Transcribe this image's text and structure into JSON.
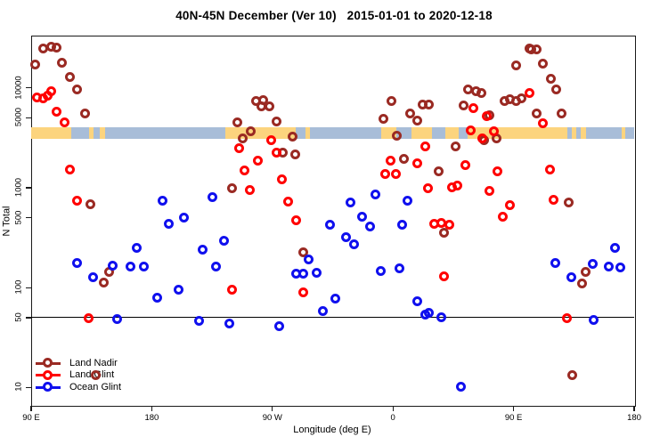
{
  "title": "40N-45N December (Ver 10)   2015-01-01 to 2020-12-18",
  "chart_data": {
    "type": "scatter",
    "title": "40N-45N December (Ver 10)   2015-01-01 to 2020-12-18",
    "xlabel": "Longitude (deg E)",
    "ylabel": "N Total",
    "x_axis": {
      "range": [
        90,
        540
      ],
      "note": "longitude axis wraps: 90E eastward around globe 1.25 turns",
      "ticks": [
        {
          "value": 90,
          "label": "90 E"
        },
        {
          "value": 180,
          "label": "180"
        },
        {
          "value": 270,
          "label": "90 W"
        },
        {
          "value": 360,
          "label": "0"
        },
        {
          "value": 450,
          "label": "90 E"
        },
        {
          "value": 540,
          "label": "180"
        }
      ]
    },
    "y_axis": {
      "scale": "log",
      "range": [
        6.6,
        33000
      ],
      "ticks": [
        {
          "value": 10000,
          "label": "10000"
        },
        {
          "value": 5000,
          "label": "5000"
        },
        {
          "value": 1000,
          "label": "1000"
        },
        {
          "value": 500,
          "label": "500"
        },
        {
          "value": 100,
          "label": "100"
        },
        {
          "value": 50,
          "label": "50"
        },
        {
          "value": 10,
          "label": "10"
        }
      ]
    },
    "reference_line": {
      "y": 50,
      "color": "#000000"
    },
    "map_band": {
      "y_top": 3980,
      "y_bottom": 3070,
      "ocean_color": "#a8bdd8",
      "land_color": "#fcd47e",
      "land_segments": [
        [
          90,
          119.9
        ],
        [
          133.2,
          136.5
        ],
        [
          141.2,
          145.2
        ],
        [
          234.9,
          287.4
        ],
        [
          294.7,
          298.1
        ],
        [
          351.4,
          362.6
        ],
        [
          373.7,
          389.2
        ],
        [
          399.1,
          409.1
        ],
        [
          415.7,
          490.1
        ],
        [
          493.5,
          497.0
        ],
        [
          500.0,
          504.4
        ],
        [
          530.5,
          533.5
        ]
      ]
    },
    "legend": {
      "position": "bottom-left"
    },
    "series": [
      {
        "name": "Land Nadir",
        "color": "#9a2a23",
        "points": [
          [
            99,
            24700
          ],
          [
            105,
            25700
          ],
          [
            109,
            25200
          ],
          [
            93,
            17100
          ],
          [
            113,
            17800
          ],
          [
            119,
            12800
          ],
          [
            124,
            9600
          ],
          [
            130,
            5480
          ],
          [
            134.5,
            680
          ],
          [
            148,
            141
          ],
          [
            144,
            110
          ],
          [
            138,
            13
          ],
          [
            258,
            7360
          ],
          [
            263,
            7500
          ],
          [
            262,
            6500
          ],
          [
            268,
            6520
          ],
          [
            273,
            4600
          ],
          [
            244,
            4500
          ],
          [
            254,
            3670
          ],
          [
            248,
            3110
          ],
          [
            285,
            3240
          ],
          [
            278,
            2200
          ],
          [
            287,
            2110
          ],
          [
            240,
            970
          ],
          [
            293,
            221
          ],
          [
            359,
            7360
          ],
          [
            382,
            6780
          ],
          [
            387,
            6780
          ],
          [
            373,
            5520
          ],
          [
            353,
            4890
          ],
          [
            378,
            4690
          ],
          [
            363,
            3310
          ],
          [
            407,
            2540
          ],
          [
            368,
            1940
          ],
          [
            394,
            1430
          ],
          [
            398,
            347
          ],
          [
            416,
            9620
          ],
          [
            422,
            9230
          ],
          [
            426,
            8870
          ],
          [
            413,
            6650
          ],
          [
            432,
            5310
          ],
          [
            428,
            2990
          ],
          [
            443,
            7230
          ],
          [
            447,
            7680
          ],
          [
            452,
            7360
          ],
          [
            456,
            7830
          ],
          [
            462,
            24700
          ],
          [
            463,
            24200
          ],
          [
            467,
            24200
          ],
          [
            452,
            16700
          ],
          [
            472,
            17400
          ],
          [
            478,
            12300
          ],
          [
            482,
            9620
          ],
          [
            467,
            5530
          ],
          [
            486,
            5530
          ],
          [
            437,
            3110
          ],
          [
            504,
            141
          ],
          [
            501,
            108
          ],
          [
            491,
            697
          ],
          [
            494,
            13
          ]
        ]
      },
      {
        "name": "Land Glint",
        "color": "#ff0000",
        "points": [
          [
            94,
            7980
          ],
          [
            99,
            7830
          ],
          [
            102,
            8330
          ],
          [
            105,
            9230
          ],
          [
            109,
            5650
          ],
          [
            115,
            4420
          ],
          [
            119,
            1490
          ],
          [
            124,
            726
          ],
          [
            133,
            49
          ],
          [
            245,
            2480
          ],
          [
            269,
            2930
          ],
          [
            273,
            2240
          ],
          [
            259,
            1830
          ],
          [
            249,
            1460
          ],
          [
            253,
            929
          ],
          [
            277,
            1190
          ],
          [
            282,
            711
          ],
          [
            288,
            462
          ],
          [
            240,
            94
          ],
          [
            293,
            88
          ],
          [
            391,
            434
          ],
          [
            396,
            443
          ],
          [
            402,
            425
          ],
          [
            420,
            6250
          ],
          [
            430,
            5200
          ],
          [
            418,
            3740
          ],
          [
            427,
            3110
          ],
          [
            435,
            3600
          ],
          [
            384,
            2540
          ],
          [
            358,
            1830
          ],
          [
            378,
            1720
          ],
          [
            414,
            1680
          ],
          [
            354,
            1370
          ],
          [
            362,
            1370
          ],
          [
            386,
            970
          ],
          [
            404,
            989
          ],
          [
            408,
            1030
          ],
          [
            432,
            910
          ],
          [
            398,
            127
          ],
          [
            462,
            8870
          ],
          [
            472,
            4330
          ],
          [
            438,
            1430
          ],
          [
            477,
            1490
          ],
          [
            442,
            510
          ],
          [
            447,
            655
          ],
          [
            480,
            741
          ],
          [
            490,
            49
          ]
        ]
      },
      {
        "name": "Ocean Glint",
        "color": "#1010ee",
        "points": [
          [
            124,
            173
          ],
          [
            136,
            125
          ],
          [
            151,
            164
          ],
          [
            164,
            162
          ],
          [
            174,
            160
          ],
          [
            169,
            245
          ],
          [
            184,
            78
          ],
          [
            188,
            726
          ],
          [
            204,
            492
          ],
          [
            193,
            430
          ],
          [
            200,
            94
          ],
          [
            225,
            800
          ],
          [
            234,
            294
          ],
          [
            218,
            235
          ],
          [
            228,
            159
          ],
          [
            288,
            135
          ],
          [
            293,
            135
          ],
          [
            297,
            191
          ],
          [
            303,
            138
          ],
          [
            308,
            57
          ],
          [
            317,
            76
          ],
          [
            313,
            418
          ],
          [
            215,
            46
          ],
          [
            238,
            43
          ],
          [
            275,
            41
          ],
          [
            154,
            48
          ],
          [
            343,
            401
          ],
          [
            325,
            313
          ],
          [
            331,
            266
          ],
          [
            367,
            418
          ],
          [
            351,
            144
          ],
          [
            365,
            153
          ],
          [
            378,
            72
          ],
          [
            384,
            53
          ],
          [
            387,
            55
          ],
          [
            396,
            50
          ],
          [
            411,
            10
          ],
          [
            526,
            245
          ],
          [
            481,
            173
          ],
          [
            509,
            169
          ],
          [
            521,
            159
          ],
          [
            530,
            157
          ],
          [
            493,
            125
          ],
          [
            510,
            47
          ],
          [
            337,
            502
          ],
          [
            347,
            855
          ],
          [
            328,
            697
          ],
          [
            371,
            726
          ]
        ]
      }
    ]
  }
}
